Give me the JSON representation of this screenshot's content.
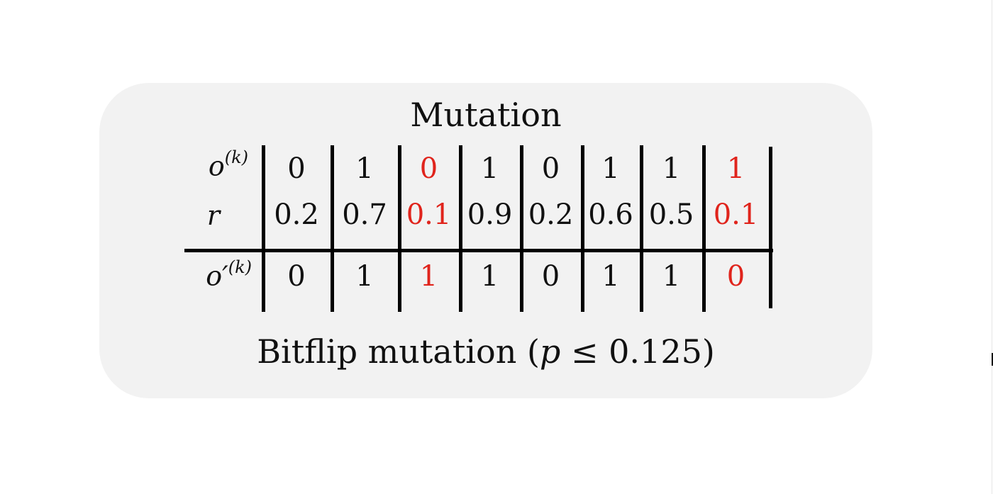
{
  "title": "Mutation",
  "caption": {
    "prefix": "Bitflip mutation (",
    "math": "p",
    "rest": " ≤ 0.125)"
  },
  "rows": {
    "o_label": "o",
    "o_sup": "(k)",
    "r_label": "r",
    "o_prime_label": "o′",
    "o_prime_sup": "(k)"
  },
  "columns": [
    {
      "o": "0",
      "r": "0.2",
      "o_prime": "0",
      "mutated": false
    },
    {
      "o": "1",
      "r": "0.7",
      "o_prime": "1",
      "mutated": false
    },
    {
      "o": "0",
      "r": "0.1",
      "o_prime": "1",
      "mutated": true
    },
    {
      "o": "1",
      "r": "0.9",
      "o_prime": "1",
      "mutated": false
    },
    {
      "o": "0",
      "r": "0.2",
      "o_prime": "0",
      "mutated": false
    },
    {
      "o": "1",
      "r": "0.6",
      "o_prime": "1",
      "mutated": false
    },
    {
      "o": "1",
      "r": "0.5",
      "o_prime": "1",
      "mutated": false
    },
    {
      "o": "1",
      "r": "0.1",
      "o_prime": "0",
      "mutated": true
    }
  ],
  "colors": {
    "highlight": "#e0241c",
    "panel": "#f2f2f2",
    "text": "#111111"
  }
}
